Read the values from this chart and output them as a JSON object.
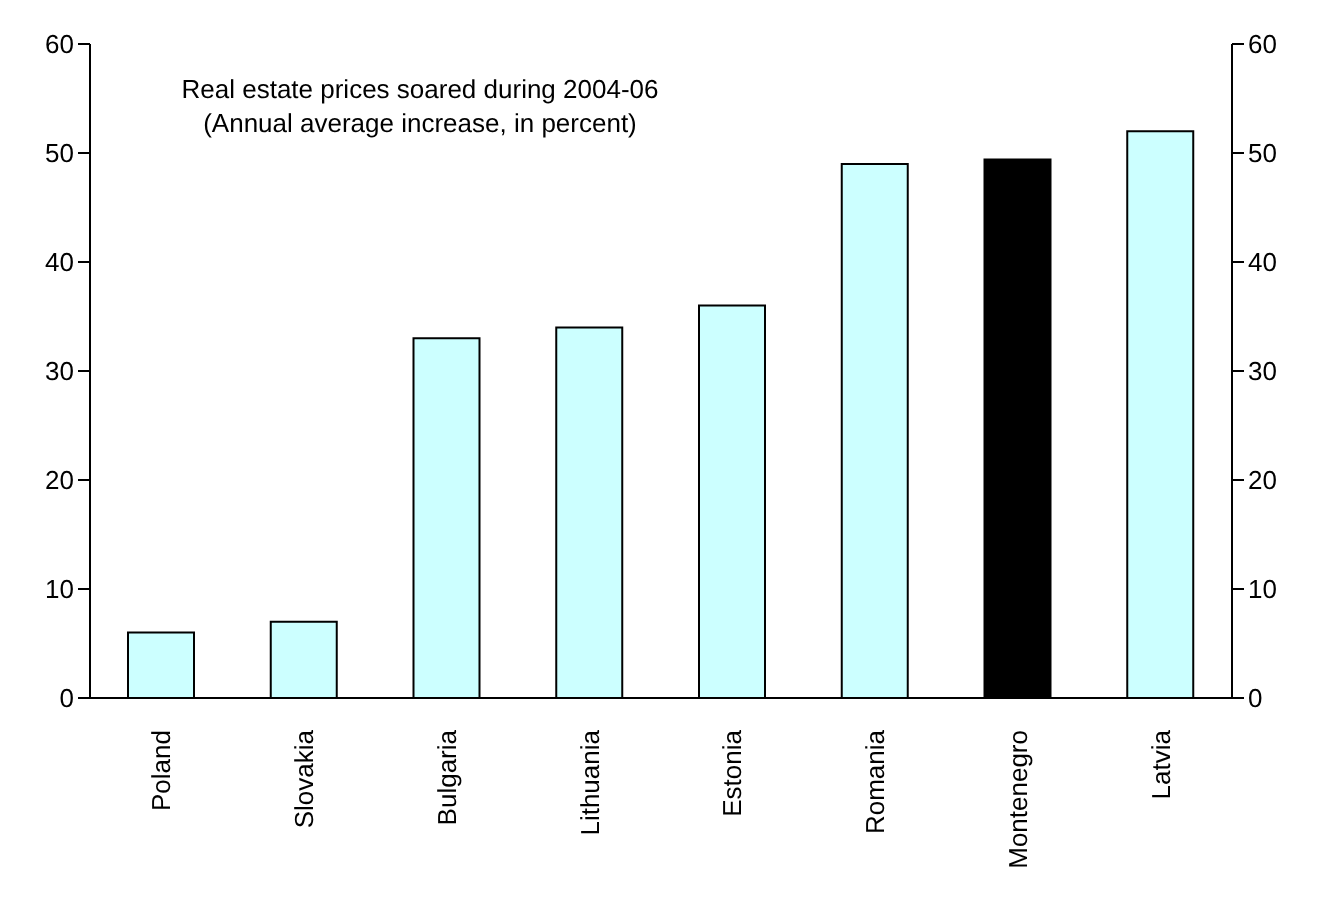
{
  "chart_data": {
    "type": "bar",
    "title": "Real estate prices soared during 2004-06",
    "subtitle": "(Annual average increase, in percent)",
    "categories": [
      "Poland",
      "Slovakia",
      "Bulgaria",
      "Lithuania",
      "Estonia",
      "Romania",
      "Montenegro",
      "Latvia"
    ],
    "values": [
      6,
      7,
      33,
      34,
      36,
      49,
      49.4,
      52
    ],
    "colors": [
      "#ccffff",
      "#ccffff",
      "#ccffff",
      "#ccffff",
      "#ccffff",
      "#ccffff",
      "#000000",
      "#ccffff"
    ],
    "ylim": [
      0,
      60
    ],
    "yticks": [
      0,
      10,
      20,
      30,
      40,
      50,
      60
    ],
    "y2lim": [
      0,
      60
    ],
    "y2ticks": [
      0,
      10,
      20,
      30,
      40,
      50,
      60
    ],
    "grid": false
  }
}
